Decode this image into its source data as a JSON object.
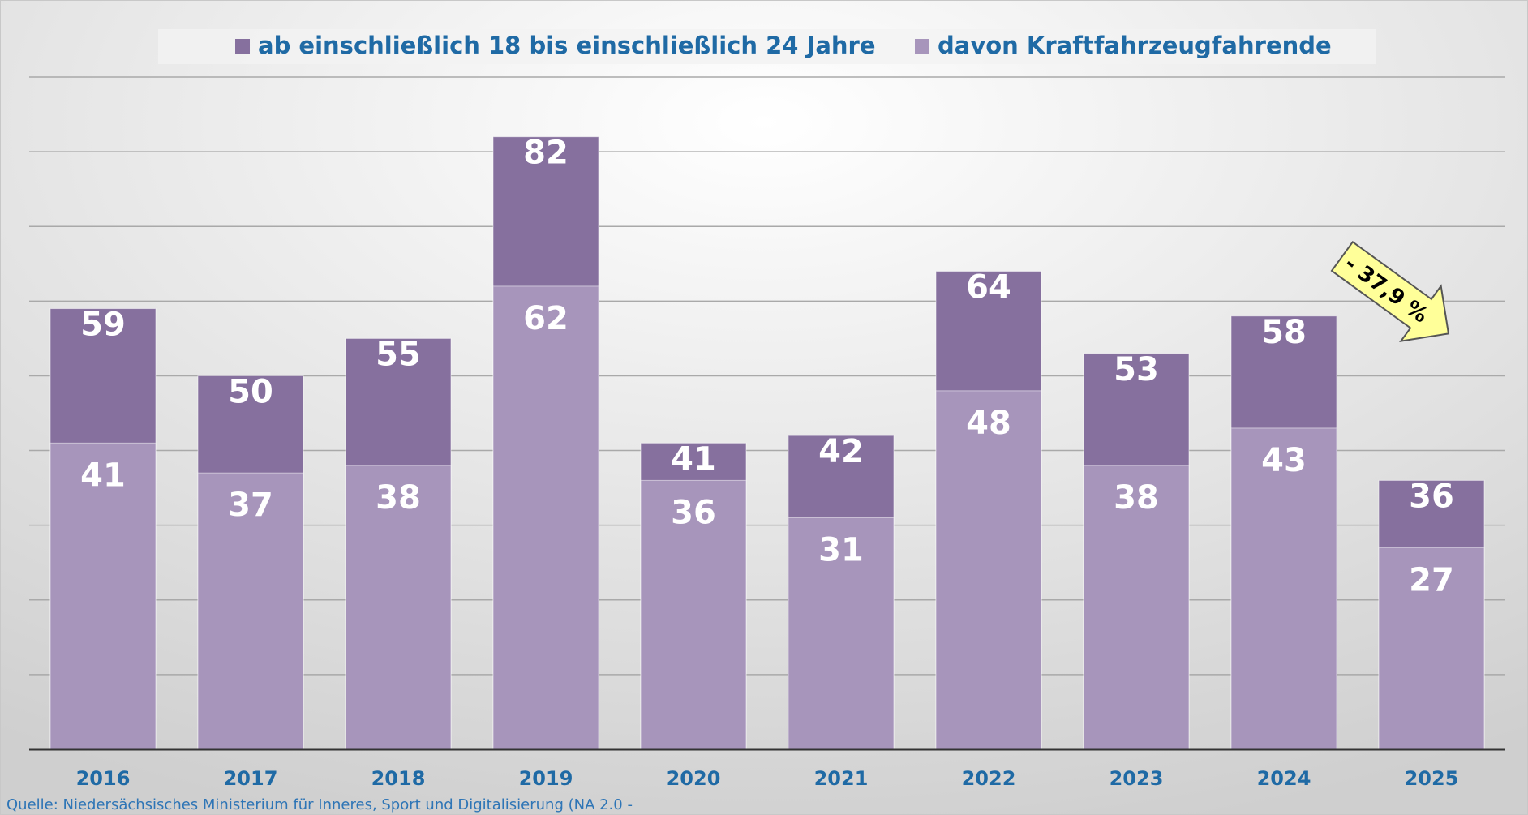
{
  "chart_data": {
    "type": "bar",
    "categories": [
      "2016",
      "2017",
      "2018",
      "2019",
      "2020",
      "2021",
      "2022",
      "2023",
      "2024",
      "2025"
    ],
    "series": [
      {
        "name": "ab einschließlich 18 bis einschließlich 24 Jahre",
        "color": "#86709e",
        "values": [
          59,
          50,
          55,
          82,
          41,
          42,
          64,
          53,
          58,
          36
        ]
      },
      {
        "name": "davon Kraftfahrzeugfahrende",
        "color": "#a795bb",
        "values": [
          41,
          37,
          38,
          62,
          36,
          31,
          48,
          38,
          43,
          27
        ]
      }
    ],
    "ylim": [
      0,
      90
    ],
    "yticks": [
      0,
      10,
      20,
      30,
      40,
      50,
      60,
      70,
      80,
      90
    ],
    "grid": true,
    "annotation": "- 37,9 %",
    "source": "Quelle: Niedersächsisches Ministerium für Inneres, Sport und Digitalisierung (NA 2.0 -"
  }
}
